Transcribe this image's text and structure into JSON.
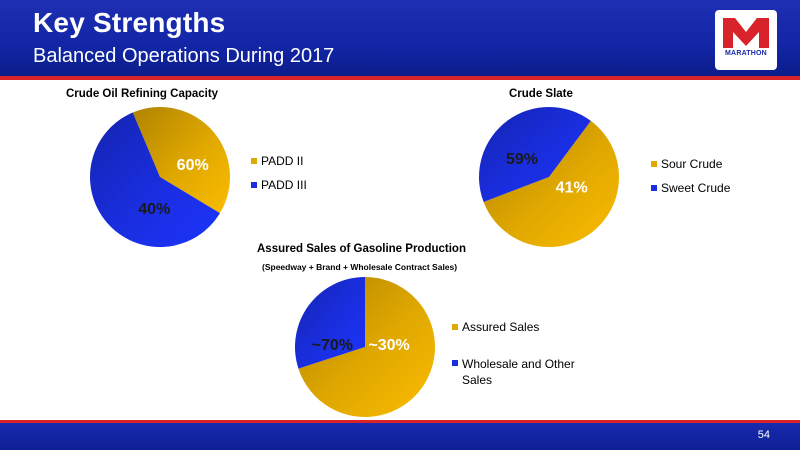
{
  "header": {
    "title": "Key Strengths",
    "subtitle": "Balanced Operations During 2017",
    "logo_text": "MARATHON"
  },
  "footer": {
    "page_number": "54"
  },
  "colors": {
    "gold": "#e0a800",
    "blue": "#1a2ee0",
    "header_blue": "#1226a6",
    "accent_red": "#d8232a"
  },
  "chart_data": [
    {
      "type": "pie",
      "title": "Crude Oil Refining Capacity",
      "categories": [
        "PADD II",
        "PADD III"
      ],
      "values": [
        40,
        60
      ],
      "labels": [
        "40%",
        "60%"
      ],
      "colors": [
        "#e0a800",
        "#1a2ee0"
      ],
      "legend": "right"
    },
    {
      "type": "pie",
      "title": "Crude Slate",
      "categories": [
        "Sour Crude",
        "Sweet Crude"
      ],
      "values": [
        59,
        41
      ],
      "labels": [
        "59%",
        "41%"
      ],
      "colors": [
        "#e0a800",
        "#1a2ee0"
      ],
      "legend": "right"
    },
    {
      "type": "pie",
      "title": "Assured Sales of Gasoline Production",
      "subtitle": "(Speedway + Brand + Wholesale Contract Sales)",
      "categories": [
        "Assured Sales",
        "Wholesale and Other Sales"
      ],
      "values": [
        70,
        30
      ],
      "labels": [
        "~70%",
        "~30%"
      ],
      "colors": [
        "#e0a800",
        "#1a2ee0"
      ],
      "legend": "right"
    }
  ]
}
